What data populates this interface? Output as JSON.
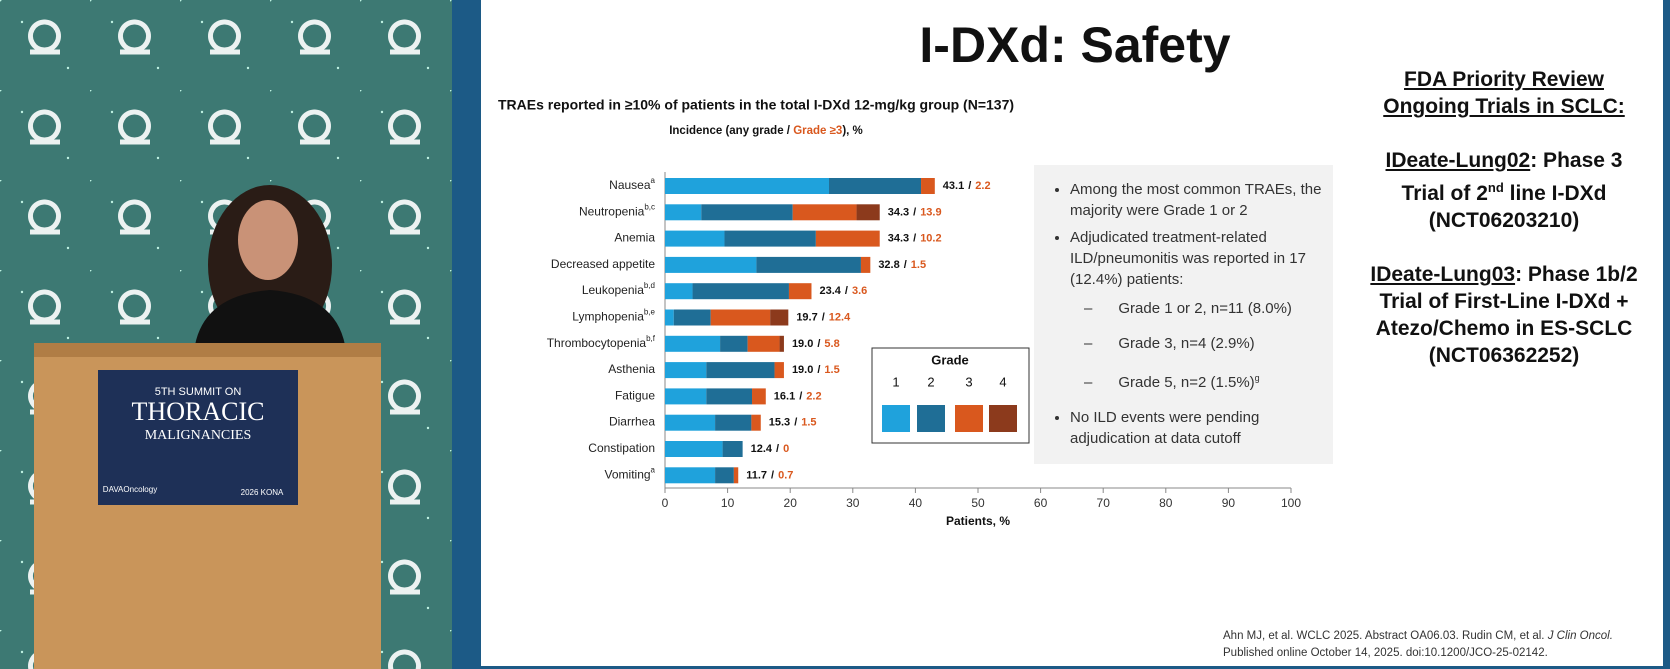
{
  "chart_data": {
    "type": "stacked_barh",
    "title": "TRAEs reported in ≥10% of patients in the total I-DXd 12-mg/kg group (N=137)",
    "subtitle_parts": [
      "Incidence (any grade / ",
      "Grade ≥3",
      "), %"
    ],
    "categories": [
      "Nausea",
      "Neutropenia",
      "Anemia",
      "Decreased appetite",
      "Leukopenia",
      "Lymphopenia",
      "Thrombocytopenia",
      "Asthenia",
      "Fatigue",
      "Diarrhea",
      "Constipation",
      "Vomiting"
    ],
    "category_notes": [
      "a",
      "b,c",
      null,
      null,
      "b,d",
      "b,e",
      "b,f",
      null,
      null,
      null,
      null,
      "a"
    ],
    "series": [
      {
        "name": "1",
        "color": "#1fa2dc",
        "values": [
          26.2,
          5.8,
          9.5,
          14.6,
          4.4,
          1.4,
          8.8,
          6.6,
          6.6,
          8.0,
          9.2,
          8.0
        ]
      },
      {
        "name": "2",
        "color": "#1f6e96",
        "values": [
          14.7,
          14.6,
          14.6,
          16.7,
          15.4,
          5.9,
          4.4,
          10.9,
          7.3,
          5.8,
          3.2,
          3.0
        ]
      },
      {
        "name": "3",
        "color": "#d9581e",
        "values": [
          2.2,
          10.2,
          10.2,
          1.5,
          3.6,
          9.5,
          5.1,
          1.5,
          2.2,
          1.5,
          0,
          0.7
        ]
      },
      {
        "name": "4",
        "color": "#8c3a1c",
        "values": [
          0,
          3.7,
          0,
          0,
          0,
          2.9,
          0.7,
          0,
          0,
          0,
          0,
          0
        ]
      }
    ],
    "totals": [
      43.1,
      34.3,
      34.3,
      32.8,
      23.4,
      19.7,
      19.0,
      19.0,
      16.1,
      15.3,
      12.4,
      11.7
    ],
    "totals_labels": [
      "43.1",
      "34.3",
      "34.3",
      "32.8",
      "23.4",
      "19.7",
      "19.0",
      "19.0",
      "16.1",
      "15.3",
      "12.4",
      "11.7"
    ],
    "grade3_totals": [
      2.2,
      13.9,
      10.2,
      1.5,
      3.6,
      12.4,
      5.8,
      1.5,
      2.2,
      1.5,
      0,
      0.7
    ],
    "label_separator": "/",
    "legend_title": "Grade",
    "xlabel": "Patients, %",
    "xlim": [
      0,
      100
    ],
    "xticks": [
      0,
      10,
      20,
      30,
      40,
      50,
      60,
      70,
      80,
      90,
      100
    ]
  },
  "slide": {
    "title": "I-DXd: Safety",
    "bullets": [
      {
        "text": "Among the most common TRAEs, the majority were Grade 1 or 2"
      },
      {
        "text": "Adjudicated treatment-related ILD/pneumonitis was reported in 17 (12.4%) patients:",
        "sub": [
          {
            "text": "Grade 1 or 2, n=11 (8.0%)"
          },
          {
            "text": "Grade 3, n=4 (2.9%)"
          },
          {
            "text": "Grade 5, n=2 (1.5%)",
            "sup": "g"
          }
        ]
      },
      {
        "text": "No ILD events were pending adjudication at data cutoff"
      }
    ],
    "sidebar": {
      "heading": [
        "FDA Priority Review",
        "Ongoing Trials in SCLC:"
      ],
      "trials": [
        {
          "name": "IDeate-Lung02",
          "text": ": Phase 3 Trial of 2",
          "sup": "nd",
          "text2": " line I-DXd",
          "id": "(NCT06203210)"
        },
        {
          "name": "IDeate-Lung03",
          "text": ": Phase 1b/2 Trial of First-Line I-DXd + Atezo/Chemo in ES-SCLC",
          "id": "(NCT06362252)"
        }
      ]
    },
    "citation": [
      "Ahn MJ, et al. WCLC 2025. Abstract OA06.03. Rudin CM, et al. ",
      "J Clin Oncol.",
      "Published online October 14, 2025. doi:10.1200/JCO-25-02142."
    ]
  },
  "podium": {
    "line1": "5TH SUMMIT ON",
    "line2": "THORACIC",
    "line3": "MALIGNANCIES",
    "logo1": "DAVAOncology",
    "logo2": "2026 KONA"
  }
}
